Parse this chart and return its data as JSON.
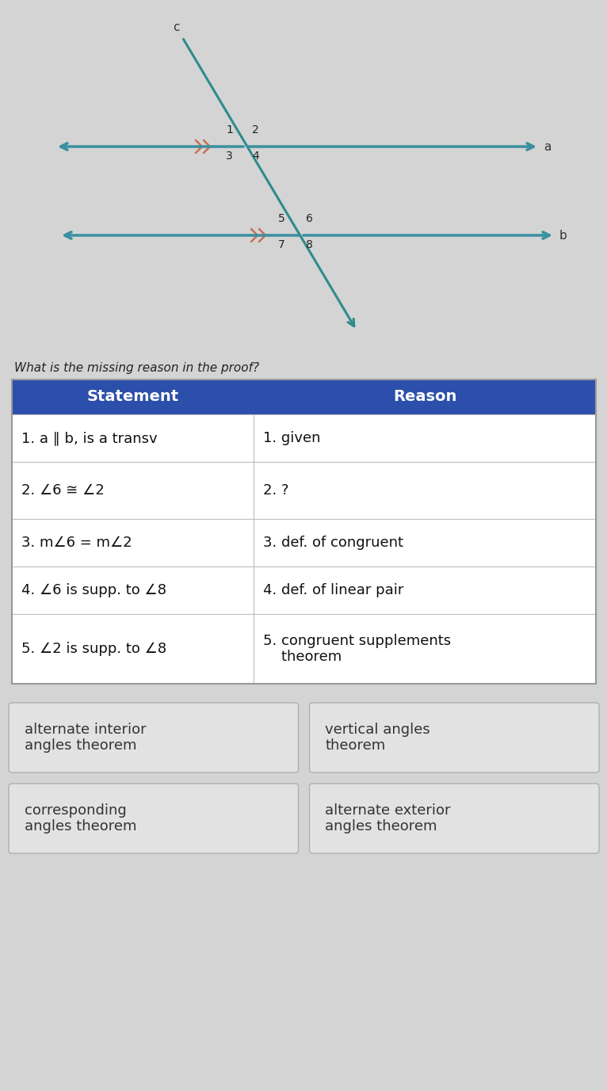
{
  "bg_color": "#d4d4d4",
  "header_bg": "#2b4faa",
  "header_text_color": "#ffffff",
  "header_fontsize": 14,
  "col1_header": "Statement",
  "col2_header": "Reason",
  "rows": [
    [
      "1. a ∥ b, is a transv",
      "1. given"
    ],
    [
      "2. ∠6 ≅ ∠2",
      "2. ?"
    ],
    [
      "3. m∠6 = m∠2",
      "3. def. of congruent"
    ],
    [
      "4. ∠6 is supp. to ∠8",
      "4. def. of linear pair"
    ],
    [
      "5. ∠2 is supp. to ∠8",
      "5. congruent supplements\n    theorem"
    ]
  ],
  "row_fontsize": 13,
  "cell_text_color": "#111111",
  "answer_buttons": [
    [
      "alternate interior\nangles theorem",
      "vertical angles\ntheorem"
    ],
    [
      "corresponding\nangles theorem",
      "alternate exterior\nangles theorem"
    ]
  ],
  "button_fontsize": 13,
  "transversal_color": "#2e8b8b",
  "parallel_line_color": "#3a8fa0",
  "tick_color": "#c87050",
  "question_text": "What is the missing reason in the proof?",
  "question_fontsize": 11
}
